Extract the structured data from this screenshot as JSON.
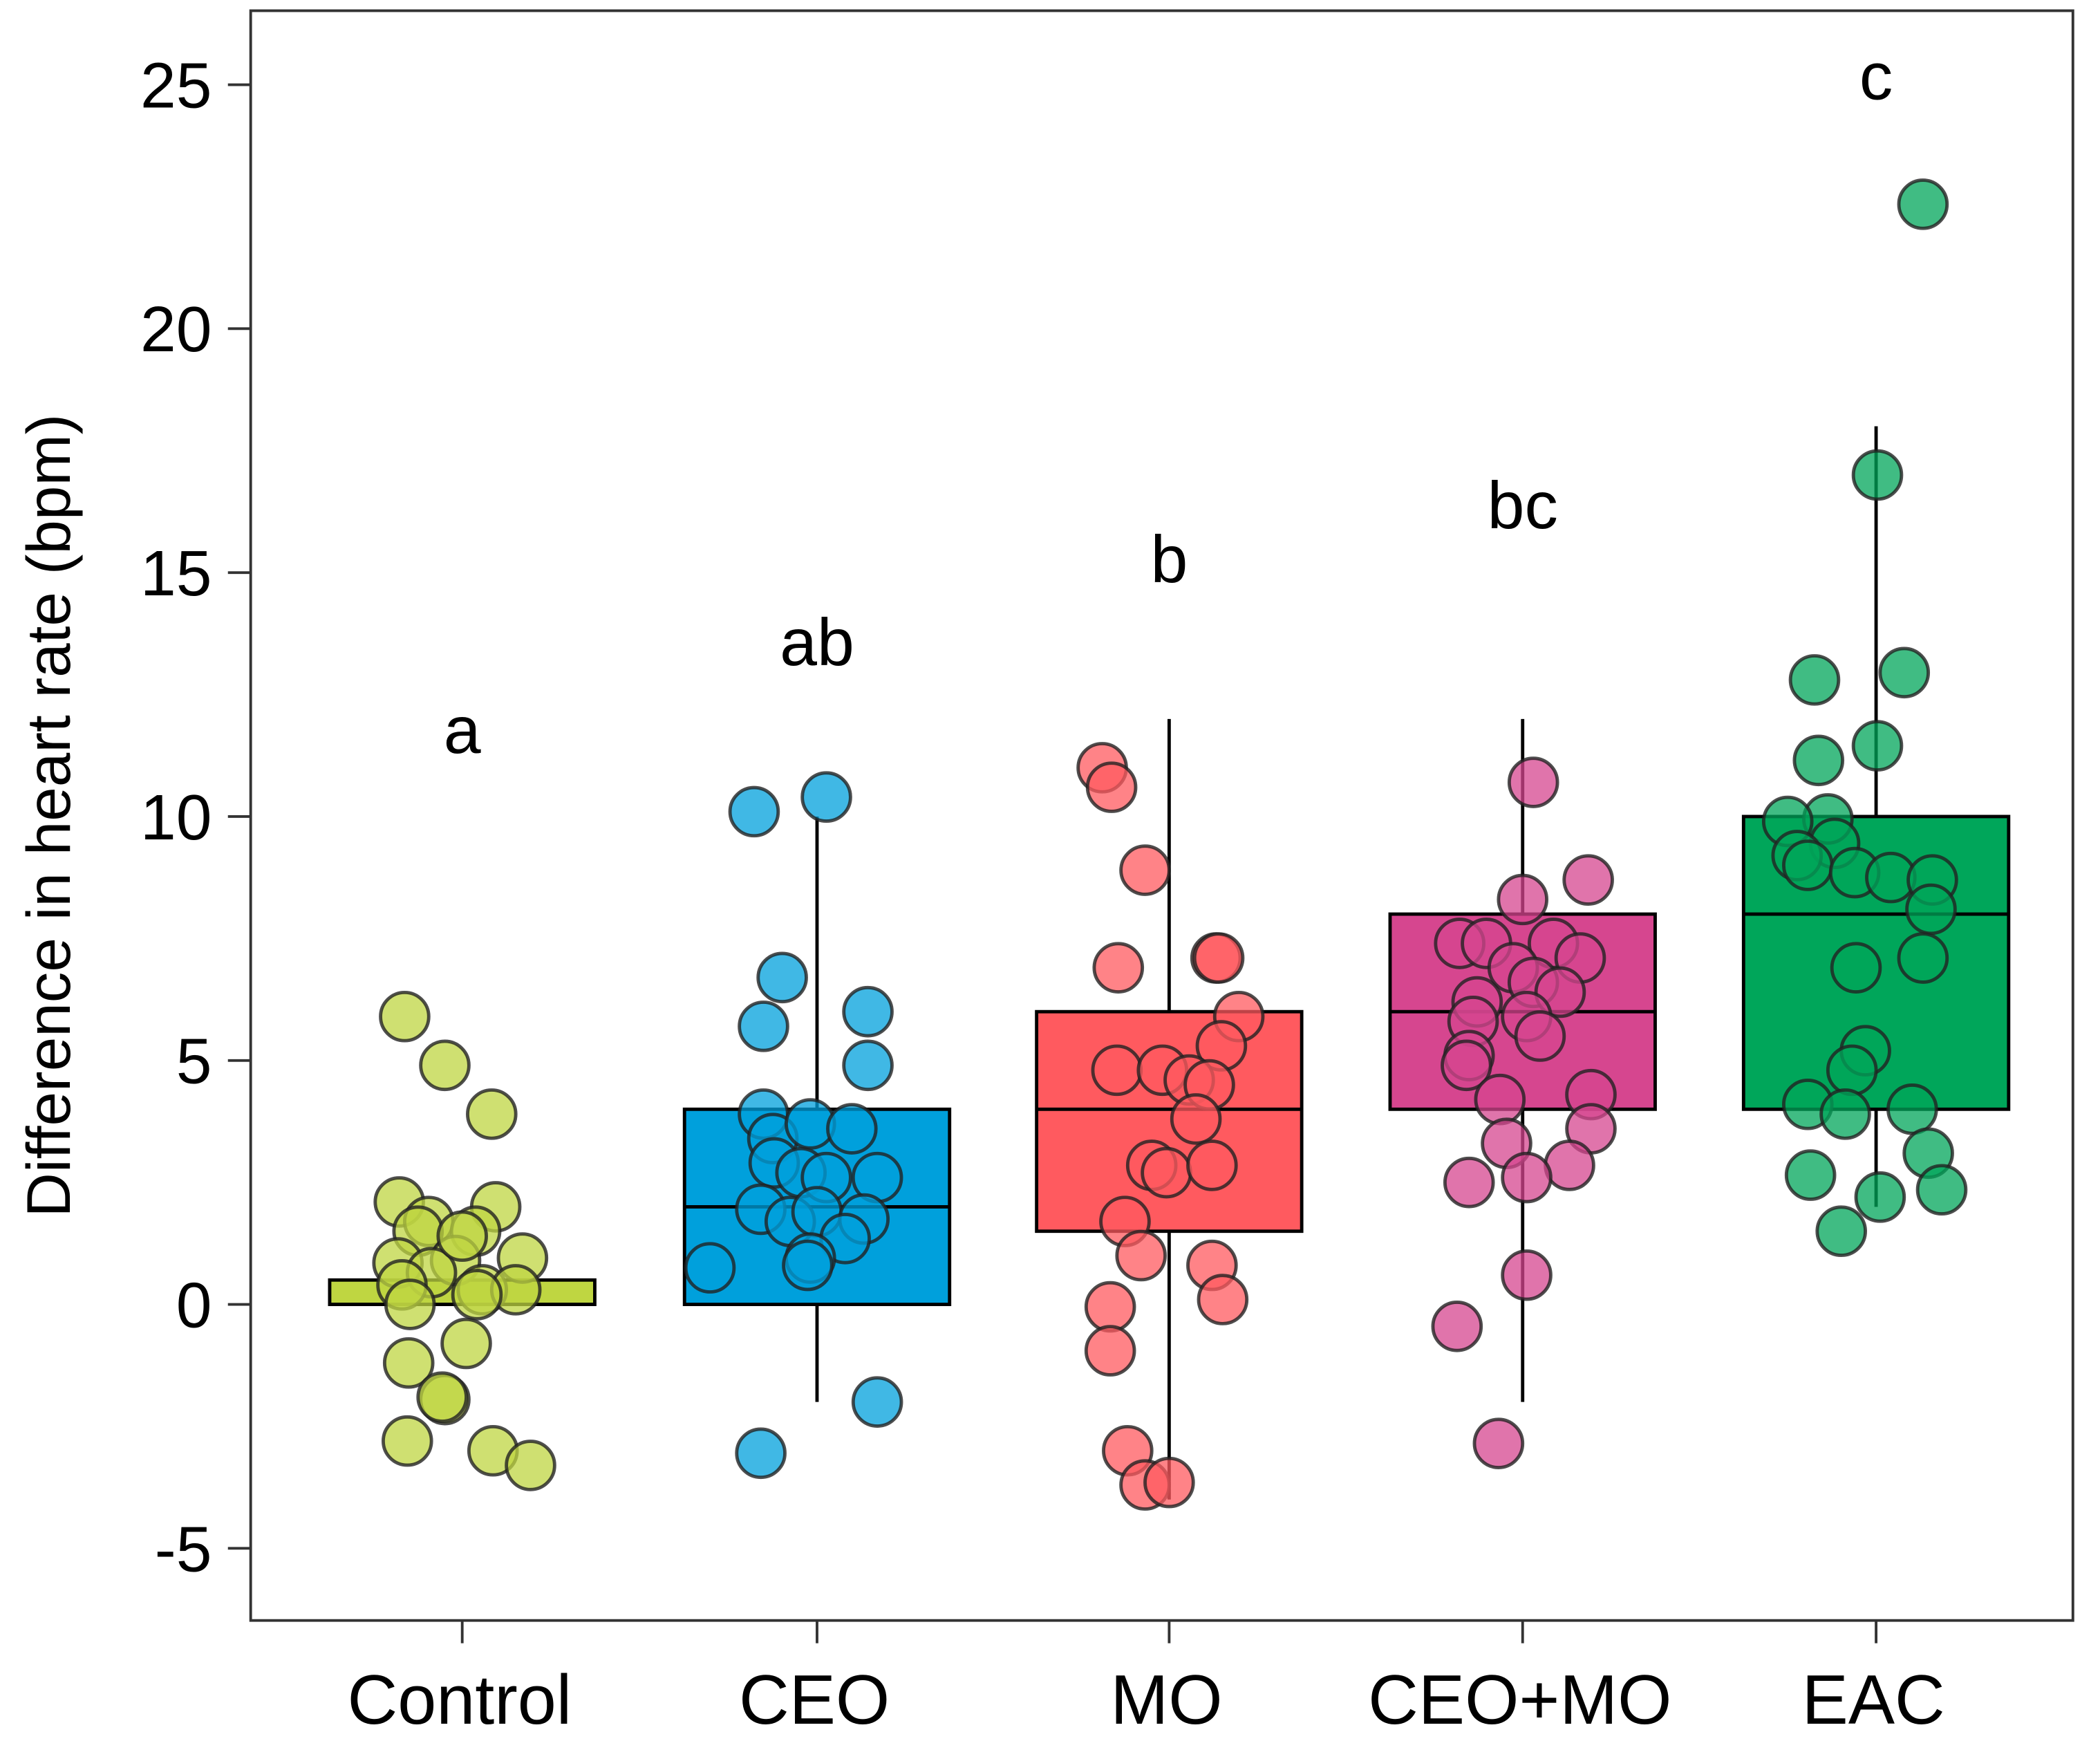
{
  "chart_data": {
    "type": "box",
    "title": "",
    "xlabel": "",
    "ylabel": "Difference in heart rate (bpm)",
    "ylim": [
      -5.5,
      26.3
    ],
    "yticks": [
      -5,
      0,
      5,
      10,
      15,
      20,
      25
    ],
    "ytick_labels": [
      "-5",
      "0",
      "5",
      "10",
      "15",
      "20",
      "25"
    ],
    "categories": [
      "Control",
      "CEO",
      "MO",
      "CEO+MO",
      "EAC"
    ],
    "groups": [
      {
        "name": "Control",
        "color": "#bfd641",
        "letter": "a",
        "letter_y": 11.8,
        "box": {
          "q1": 0,
          "median": 0,
          "q3": 0.5,
          "whisker_low": 0,
          "whisker_high": 0.5
        },
        "points": [
          5.9,
          4.9,
          3.9,
          2.1,
          2.0,
          1.7,
          1.5,
          1.5,
          0.85,
          0.9,
          0.95,
          0.65,
          0.4,
          0.3,
          0.3,
          0.0,
          -0.8,
          -1.2,
          -1.95,
          -1.9,
          -2.8,
          -3.0,
          -3.3,
          0.2,
          1.4
        ]
      },
      {
        "name": "CEO",
        "color": "#00a0dc",
        "letter": "ab",
        "letter_y": 13.6,
        "box": {
          "q1": 0,
          "median": 2,
          "q3": 4,
          "whisker_low": -2,
          "whisker_high": 10
        },
        "points": [
          10.1,
          10.4,
          6.7,
          5.7,
          6.0,
          4.9,
          3.9,
          3.4,
          3.7,
          3.6,
          2.9,
          2.7,
          2.6,
          2.6,
          1.95,
          1.7,
          1.9,
          1.75,
          1.35,
          0.95,
          0.75,
          0.8,
          -2.0,
          -3.05
        ]
      },
      {
        "name": "MO",
        "color": "#ff5a5f",
        "letter": "b",
        "letter_y": 15.3,
        "box": {
          "q1": 1.5,
          "median": 4,
          "q3": 6,
          "whisker_low": -4,
          "whisker_high": 12
        },
        "points": [
          11.0,
          10.6,
          8.9,
          6.9,
          7.1,
          7.1,
          5.9,
          5.3,
          4.8,
          4.8,
          4.6,
          4.5,
          3.8,
          2.85,
          2.7,
          2.85,
          1.7,
          1.0,
          0.8,
          0.1,
          -0.05,
          -0.95,
          -3.0,
          -3.7,
          -3.65
        ]
      },
      {
        "name": "CEO+MO",
        "color": "#d6468f",
        "letter": "bc",
        "letter_y": 16.4,
        "box": {
          "q1": 4,
          "median": 6,
          "q3": 8,
          "whisker_low": -2,
          "whisker_high": 12
        },
        "points": [
          10.7,
          8.7,
          8.3,
          7.4,
          7.4,
          7.4,
          7.1,
          6.9,
          6.6,
          6.4,
          6.2,
          5.9,
          5.8,
          5.5,
          5.1,
          4.9,
          4.2,
          4.3,
          3.3,
          3.6,
          2.85,
          2.6,
          2.5,
          0.6,
          -0.45,
          -2.85
        ]
      },
      {
        "name": "EAC",
        "color": "#00a65a",
        "letter": "c",
        "letter_y": 25.2,
        "box": {
          "q1": 4,
          "median": 8,
          "q3": 10,
          "whisker_low": 2,
          "whisker_high": 18
        },
        "points": [
          22.55,
          17.0,
          12.95,
          12.8,
          11.45,
          11.15,
          9.95,
          9.9,
          9.45,
          9.2,
          9.0,
          8.85,
          8.75,
          8.7,
          8.1,
          7.1,
          6.9,
          5.2,
          4.8,
          4.1,
          3.9,
          4.0,
          3.1,
          2.65,
          2.35,
          2.2,
          1.5
        ]
      }
    ],
    "grid": false,
    "legend": "none"
  }
}
